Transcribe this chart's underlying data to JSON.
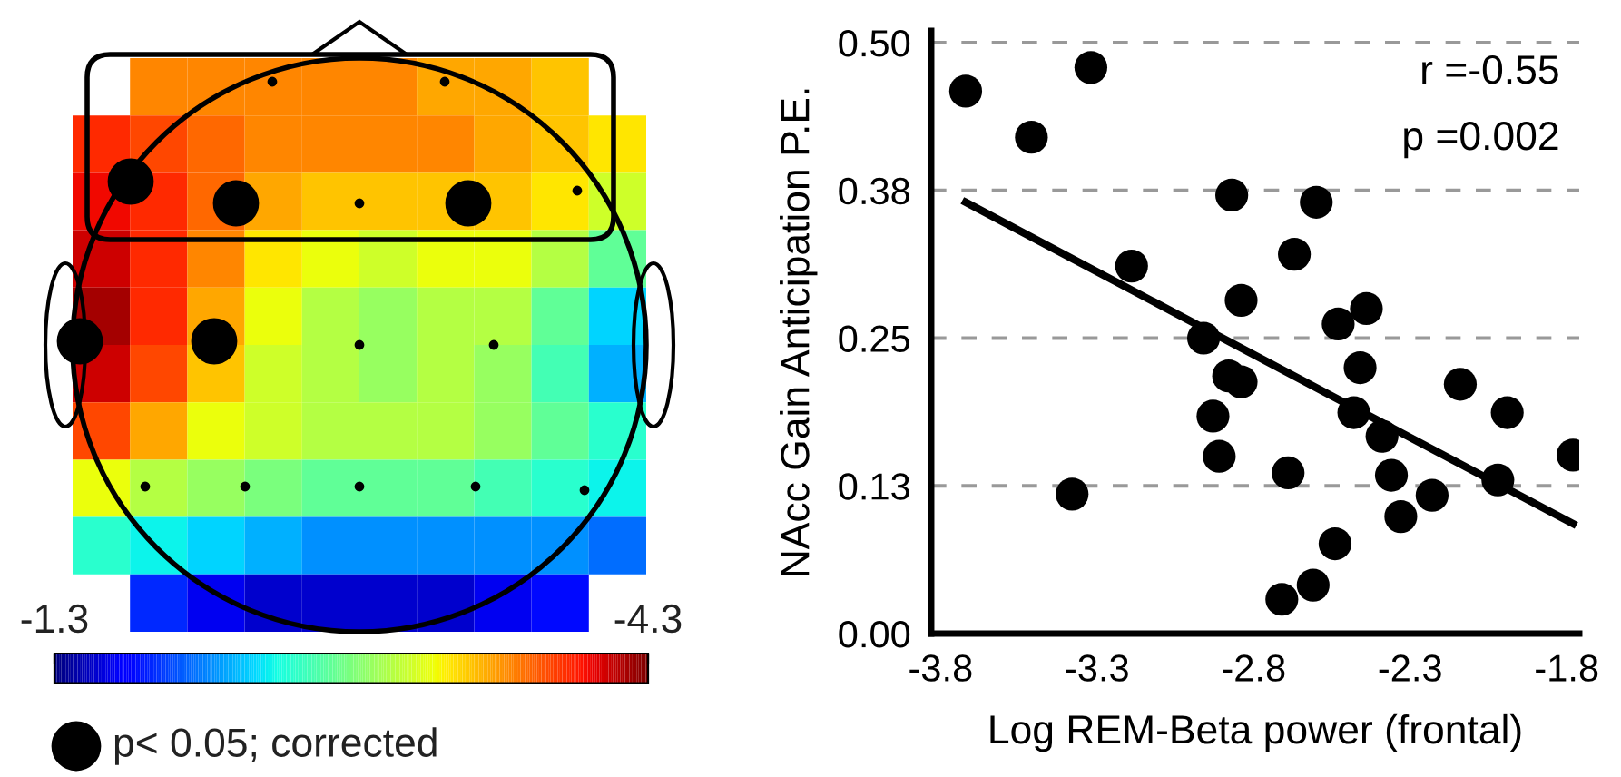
{
  "chart_data": [
    {
      "type": "heatmap",
      "categories": [
        null,
        null,
        null,
        null,
        null,
        null,
        null,
        null,
        null,
        null
      ],
      "y_categories": [
        null,
        null,
        null,
        null,
        null,
        null,
        null,
        null,
        null,
        null
      ],
      "cells": [
        [
          null,
          -3.6,
          -3.6,
          -3.6,
          -3.6,
          -3.6,
          -3.5,
          -3.5,
          -3.4,
          null
        ],
        [
          -3.9,
          -3.8,
          -3.7,
          -3.6,
          -3.6,
          -3.6,
          -3.6,
          -3.5,
          -3.4,
          -3.3
        ],
        [
          -4.0,
          -3.9,
          -3.7,
          -3.5,
          -3.4,
          -3.4,
          -3.4,
          -3.4,
          -3.3,
          -3.1
        ],
        [
          -4.1,
          -3.9,
          -3.6,
          -3.3,
          -3.2,
          -3.1,
          -3.2,
          -3.2,
          -3.0,
          -2.7
        ],
        [
          -4.2,
          -3.9,
          -3.5,
          -3.2,
          -3.0,
          -2.9,
          -3.0,
          -3.0,
          -2.7,
          -2.3
        ],
        [
          -4.1,
          -3.8,
          -3.4,
          -3.1,
          -3.0,
          -2.9,
          -3.0,
          -2.9,
          -2.6,
          -2.2
        ],
        [
          -3.8,
          -3.5,
          -3.2,
          -3.1,
          -3.0,
          -3.0,
          -3.0,
          -2.9,
          -2.7,
          -2.5
        ],
        [
          -3.2,
          -3.0,
          -2.9,
          -2.8,
          -2.7,
          -2.7,
          -2.7,
          -2.6,
          -2.5,
          -2.4
        ],
        [
          -2.5,
          -2.4,
          -2.3,
          -2.2,
          -2.1,
          -2.1,
          -2.1,
          -2.1,
          -2.1,
          -2.0
        ],
        [
          null,
          -1.8,
          -1.6,
          -1.5,
          -1.5,
          -1.5,
          -1.5,
          -1.6,
          -1.7,
          null
        ]
      ],
      "clim": [
        -1.3,
        -4.3
      ],
      "cticks": [
        {
          "value": -1.3,
          "label": "-1.3"
        },
        {
          "value": -4.3,
          "label": "-4.3"
        }
      ],
      "annotations": [
        "p< 0.05; corrected"
      ]
    },
    {
      "type": "scatter",
      "xlabel": "Log REM-Beta power (frontal)",
      "ylabel": "NAcc Gain Anticipation P.E.",
      "annotations": [
        "r =-0.55",
        "p =0.002"
      ],
      "xlim": [
        -3.83,
        -1.76
      ],
      "xticks": [
        -3.8,
        -3.3,
        -2.8,
        -2.3,
        -1.8
      ],
      "ylim": [
        0,
        0.51
      ],
      "yticks": [
        {
          "value": 0,
          "label": "0.00"
        },
        {
          "value": 0.125,
          "label": "0.13"
        },
        {
          "value": 0.25,
          "label": "0.25"
        },
        {
          "value": 0.375,
          "label": "0.38"
        },
        {
          "value": 0.5,
          "label": "0.50"
        }
      ],
      "grid": "y",
      "series": [
        {
          "type": "scatter",
          "marker": "circle",
          "color": "#000000",
          "x": [
            -3.72,
            -3.32,
            -3.51,
            -2.87,
            -2.6,
            -3.19,
            -2.67,
            -2.84,
            -2.44,
            -2.53,
            -2.96,
            -2.46,
            -2.88,
            -2.84,
            -2.14,
            -2.48,
            -2.93,
            -1.99,
            -2.39,
            -2.91,
            -1.78,
            -2.69,
            -2.36,
            -3.38,
            -2.23,
            -2.02,
            -2.33,
            -2.54,
            -2.61,
            -2.71
          ],
          "values": [
            0.459,
            0.479,
            0.42,
            0.371,
            0.365,
            0.311,
            0.321,
            0.282,
            0.275,
            0.262,
            0.25,
            0.225,
            0.218,
            0.213,
            0.211,
            0.187,
            0.184,
            0.187,
            0.167,
            0.15,
            0.151,
            0.136,
            0.134,
            0.118,
            0.117,
            0.13,
            0.099,
            0.076,
            0.041,
            0.029
          ]
        },
        {
          "type": "line",
          "color": "#000000",
          "x": [
            -3.72,
            -1.78
          ],
          "values": [
            0.365,
            0.093
          ]
        }
      ]
    }
  ]
}
